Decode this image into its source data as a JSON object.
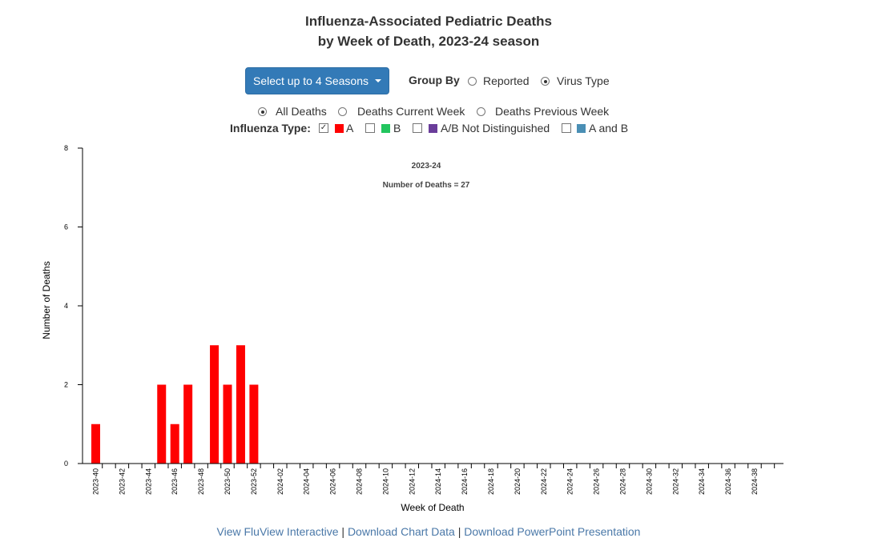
{
  "header": {
    "title_line1": "Influenza-Associated Pediatric Deaths",
    "title_line2": "by Week of Death, 2023-24 season"
  },
  "controls": {
    "season_button_label": "Select up to 4 Seasons",
    "group_by_label": "Group By",
    "group_by_options": [
      {
        "label": "Reported",
        "selected": false
      },
      {
        "label": "Virus Type",
        "selected": true
      }
    ],
    "death_options": [
      {
        "label": "All Deaths",
        "selected": true
      },
      {
        "label": "Deaths Current Week",
        "selected": false
      },
      {
        "label": "Deaths Previous Week",
        "selected": false
      }
    ],
    "influenza_type_label": "Influenza Type:",
    "influenza_types": [
      {
        "label": "A",
        "checked": true,
        "color": "#ff0000"
      },
      {
        "label": "B",
        "checked": false,
        "color": "#22c55e"
      },
      {
        "label": "A/B Not Distinguished",
        "checked": false,
        "color": "#6a3d9a"
      },
      {
        "label": "A and B",
        "checked": false,
        "color": "#4a8fb5"
      }
    ]
  },
  "chart_data": {
    "type": "bar",
    "season_label": "2023-24",
    "total_label": "Number of Deaths = 27",
    "xlabel": "Week of Death",
    "ylabel": "Number of Deaths",
    "ylim": [
      0,
      8
    ],
    "yticks": [
      0,
      2,
      4,
      6,
      8
    ],
    "bar_color": "#ff0000",
    "grid": false,
    "categories": [
      "2023-40",
      "2023-41",
      "2023-42",
      "2023-43",
      "2023-44",
      "2023-45",
      "2023-46",
      "2023-47",
      "2023-48",
      "2023-49",
      "2023-50",
      "2023-51",
      "2023-52",
      "2024-01",
      "2024-02",
      "2024-03",
      "2024-04",
      "2024-05",
      "2024-06",
      "2024-07",
      "2024-08",
      "2024-09",
      "2024-10",
      "2024-11",
      "2024-12",
      "2024-13",
      "2024-14",
      "2024-15",
      "2024-16",
      "2024-17",
      "2024-18",
      "2024-19",
      "2024-20",
      "2024-21",
      "2024-22",
      "2024-23",
      "2024-24",
      "2024-25",
      "2024-26",
      "2024-27",
      "2024-28",
      "2024-29",
      "2024-30",
      "2024-31",
      "2024-32",
      "2024-33",
      "2024-34",
      "2024-35",
      "2024-36",
      "2024-37",
      "2024-38",
      "2024-39"
    ],
    "tick_labels": [
      "2023-40",
      "2023-42",
      "2023-44",
      "2023-46",
      "2023-48",
      "2023-50",
      "2023-52",
      "2024-02",
      "2024-04",
      "2024-06",
      "2024-08",
      "2024-10",
      "2024-12",
      "2024-14",
      "2024-16",
      "2024-18",
      "2024-20",
      "2024-22",
      "2024-24",
      "2024-26",
      "2024-28",
      "2024-30",
      "2024-32",
      "2024-34",
      "2024-36",
      "2024-38"
    ],
    "values": [
      1,
      0,
      0,
      0,
      0,
      2,
      1,
      2,
      0,
      3,
      2,
      3,
      2,
      0,
      0,
      0,
      0,
      0,
      0,
      0,
      0,
      0,
      0,
      0,
      0,
      0,
      0,
      0,
      0,
      0,
      0,
      0,
      0,
      0,
      0,
      0,
      0,
      0,
      0,
      0,
      0,
      0,
      0,
      0,
      0,
      0,
      0,
      0,
      0,
      0,
      0,
      0
    ]
  },
  "footer": {
    "link1": "View FluView Interactive",
    "sep": "|",
    "link2": "Download Chart Data",
    "link3": "Download PowerPoint Presentation"
  }
}
